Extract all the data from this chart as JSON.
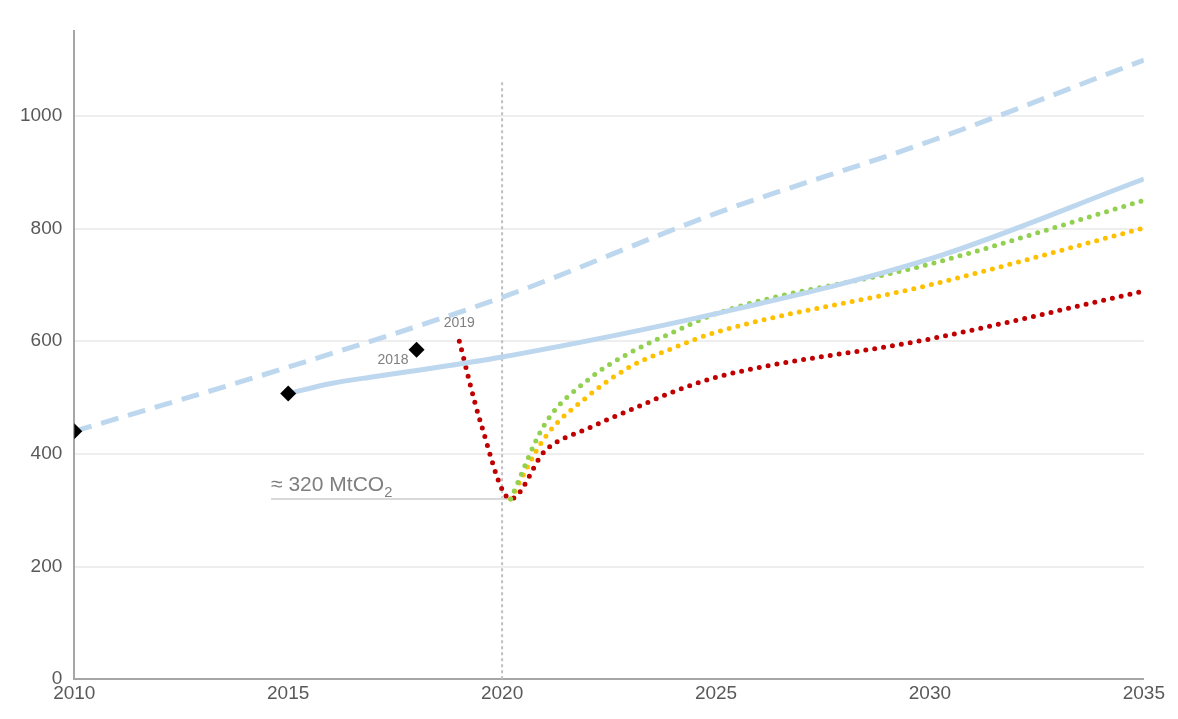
{
  "chart_data": {
    "type": "line",
    "xlim": [
      2010,
      2035
    ],
    "xticks": [
      2010,
      2015,
      2020,
      2025,
      2030,
      2035
    ],
    "ylim": [
      0,
      1150
    ],
    "yticks": [
      0,
      200,
      400,
      600,
      800,
      1000
    ],
    "grid": "y",
    "legend": false,
    "series": [
      {
        "type": "line",
        "color": "#bdd7ee",
        "line_style": "dashed",
        "marker": "none",
        "x": [
          2010,
          2015,
          2020,
          2025,
          2030,
          2035
        ],
        "values": [
          440,
          554,
          678,
          827,
          955,
          1099
        ]
      },
      {
        "type": "line",
        "color": "#bdd7ee",
        "line_style": "solid",
        "marker": "none",
        "x": [
          2015,
          2016,
          2017,
          2018,
          2020,
          2025,
          2030,
          2035
        ],
        "values": [
          507,
          525,
          537,
          548,
          572,
          649,
          746,
          888
        ]
      },
      {
        "type": "line",
        "color": "#92d050",
        "line_style": "dotted",
        "marker": "none",
        "x": [
          2020.2,
          2021,
          2022,
          2023,
          2024,
          2025,
          2030,
          2035
        ],
        "values": [
          320,
          453,
          531,
          580,
          616,
          649,
          737,
          850
        ]
      },
      {
        "type": "line",
        "color": "#ffc000",
        "line_style": "dotted",
        "marker": "none",
        "x": [
          2020.2,
          2021,
          2022,
          2023,
          2024,
          2025,
          2030,
          2035
        ],
        "values": [
          320,
          429,
          502,
          555,
          588,
          616,
          700,
          801
        ]
      },
      {
        "type": "line",
        "color": "#c00000",
        "line_style": "dotted",
        "marker": "none",
        "x": [
          2019,
          2019.5,
          2020.2,
          2021,
          2022,
          2023,
          2024,
          2025,
          2030,
          2035
        ],
        "values": [
          600,
          455,
          320,
          405,
          445,
          478,
          510,
          536,
          604,
          689
        ]
      },
      {
        "type": "line",
        "color": "#d9d9d9",
        "line_style": "solid",
        "marker": "none",
        "x": [
          2014.6,
          2020.2
        ],
        "values": [
          320,
          320
        ]
      },
      {
        "type": "scatter",
        "color": "#000000",
        "marker": "diamond",
        "x": [
          2010,
          2015,
          2018
        ],
        "values": [
          440,
          507,
          585
        ]
      }
    ],
    "ref_lines": [
      {
        "axis": "x",
        "value": 2020,
        "color": "#bfbfbf",
        "line_style": "dotted"
      }
    ],
    "annotations": [
      {
        "text": "2018",
        "x": 2018,
        "y": 585
      },
      {
        "text": "2019",
        "x": 2019,
        "y": 600
      },
      {
        "text": "≈ 320 MtCO$_{2}$",
        "x": 2014.6,
        "y": 320
      }
    ]
  }
}
